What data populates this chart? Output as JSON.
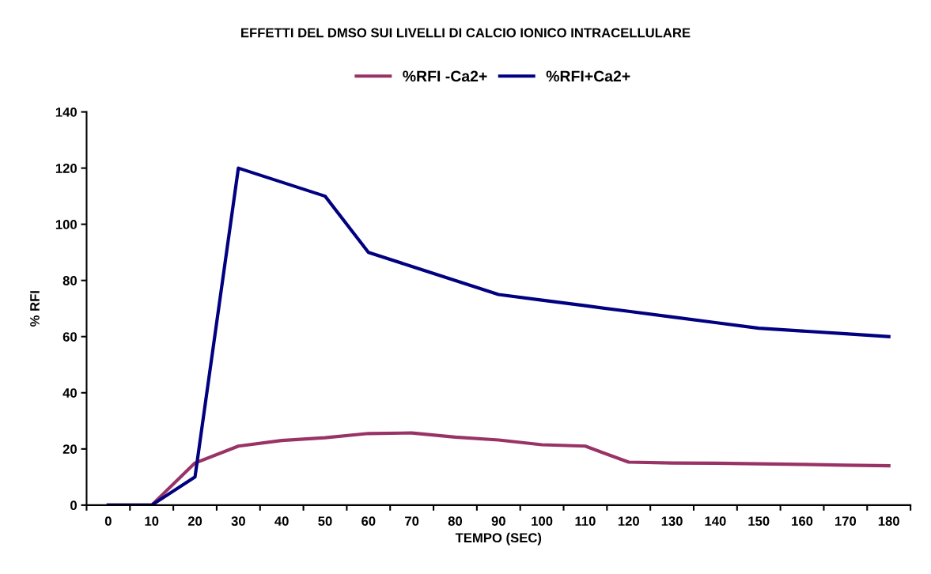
{
  "chart_data": {
    "type": "line",
    "title": "EFFETTI DEL DMSO SUI LIVELLI DI CALCIO IONICO INTRACELLULARE",
    "xlabel": "TEMPO (SEC)",
    "ylabel": "% RFI",
    "categories": [
      "0",
      "10",
      "20",
      "30",
      "40",
      "50",
      "60",
      "70",
      "80",
      "90",
      "100",
      "110",
      "120",
      "130",
      "140",
      "150",
      "160",
      "170",
      "180"
    ],
    "series": [
      {
        "name": "%RFI -Ca2+",
        "color": "#993366",
        "values": [
          0,
          0,
          15,
          21,
          23,
          24,
          25.5,
          25.7,
          24.2,
          23.2,
          21.5,
          21,
          15.3,
          15,
          14.9,
          14.7,
          14.5,
          14.2,
          14
        ]
      },
      {
        "name": "%RFI+Ca2+",
        "color": "#000080",
        "values": [
          0,
          0,
          10,
          120,
          115,
          110,
          90,
          85,
          80,
          75,
          73,
          71,
          69,
          67,
          65,
          63,
          62,
          61,
          60
        ]
      }
    ],
    "ylim": [
      0,
      140
    ],
    "yticks": [
      0,
      20,
      40,
      60,
      80,
      100,
      120,
      140
    ],
    "grid": false,
    "legend": "top",
    "marker": "none",
    "line_style": "solid"
  }
}
